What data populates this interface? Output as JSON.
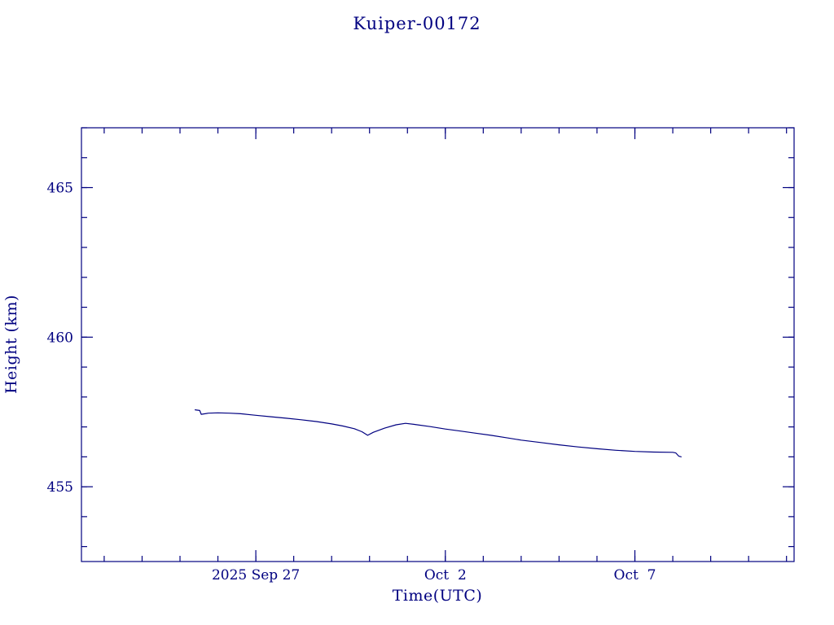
{
  "chart_data": {
    "type": "line",
    "title": "Kuiper-00172",
    "xlabel": "Time(UTC)",
    "ylabel": "Height (km)",
    "line_color": "#000080",
    "x_axis_unit": "days since 2025 Sep 22 00:00 UTC",
    "xlim": [
      0.4,
      19.2
    ],
    "ylim": [
      452.5,
      467.0
    ],
    "x_minor_step": 1,
    "y_minor_step": 1,
    "xticks": [
      {
        "value": 5,
        "label": "2025 Sep 27"
      },
      {
        "value": 10,
        "label": "Oct  2"
      },
      {
        "value": 15,
        "label": "Oct  7"
      }
    ],
    "yticks": [
      {
        "value": 455,
        "label": "455"
      },
      {
        "value": 460,
        "label": "460"
      },
      {
        "value": 465,
        "label": "465"
      }
    ],
    "legend": null,
    "grid": false,
    "series": [
      {
        "name": "height_km",
        "points": [
          [
            3.4,
            457.57
          ],
          [
            3.52,
            457.55
          ],
          [
            3.56,
            457.42
          ],
          [
            3.75,
            457.46
          ],
          [
            4.0,
            457.47
          ],
          [
            4.3,
            457.46
          ],
          [
            4.6,
            457.44
          ],
          [
            5.0,
            457.39
          ],
          [
            5.4,
            457.34
          ],
          [
            5.8,
            457.29
          ],
          [
            6.2,
            457.24
          ],
          [
            6.6,
            457.18
          ],
          [
            7.0,
            457.1
          ],
          [
            7.3,
            457.03
          ],
          [
            7.6,
            456.94
          ],
          [
            7.8,
            456.84
          ],
          [
            7.95,
            456.72
          ],
          [
            8.1,
            456.82
          ],
          [
            8.4,
            456.96
          ],
          [
            8.7,
            457.07
          ],
          [
            8.95,
            457.12
          ],
          [
            9.2,
            457.08
          ],
          [
            9.6,
            457.01
          ],
          [
            10.0,
            456.93
          ],
          [
            10.4,
            456.86
          ],
          [
            10.8,
            456.79
          ],
          [
            11.2,
            456.72
          ],
          [
            11.6,
            456.64
          ],
          [
            12.0,
            456.56
          ],
          [
            12.5,
            456.48
          ],
          [
            13.0,
            456.4
          ],
          [
            13.5,
            456.33
          ],
          [
            14.0,
            456.27
          ],
          [
            14.5,
            456.22
          ],
          [
            15.0,
            456.18
          ],
          [
            15.5,
            456.16
          ],
          [
            16.0,
            456.15
          ],
          [
            16.08,
            456.13
          ],
          [
            16.16,
            456.02
          ],
          [
            16.22,
            456.0
          ]
        ]
      }
    ]
  }
}
